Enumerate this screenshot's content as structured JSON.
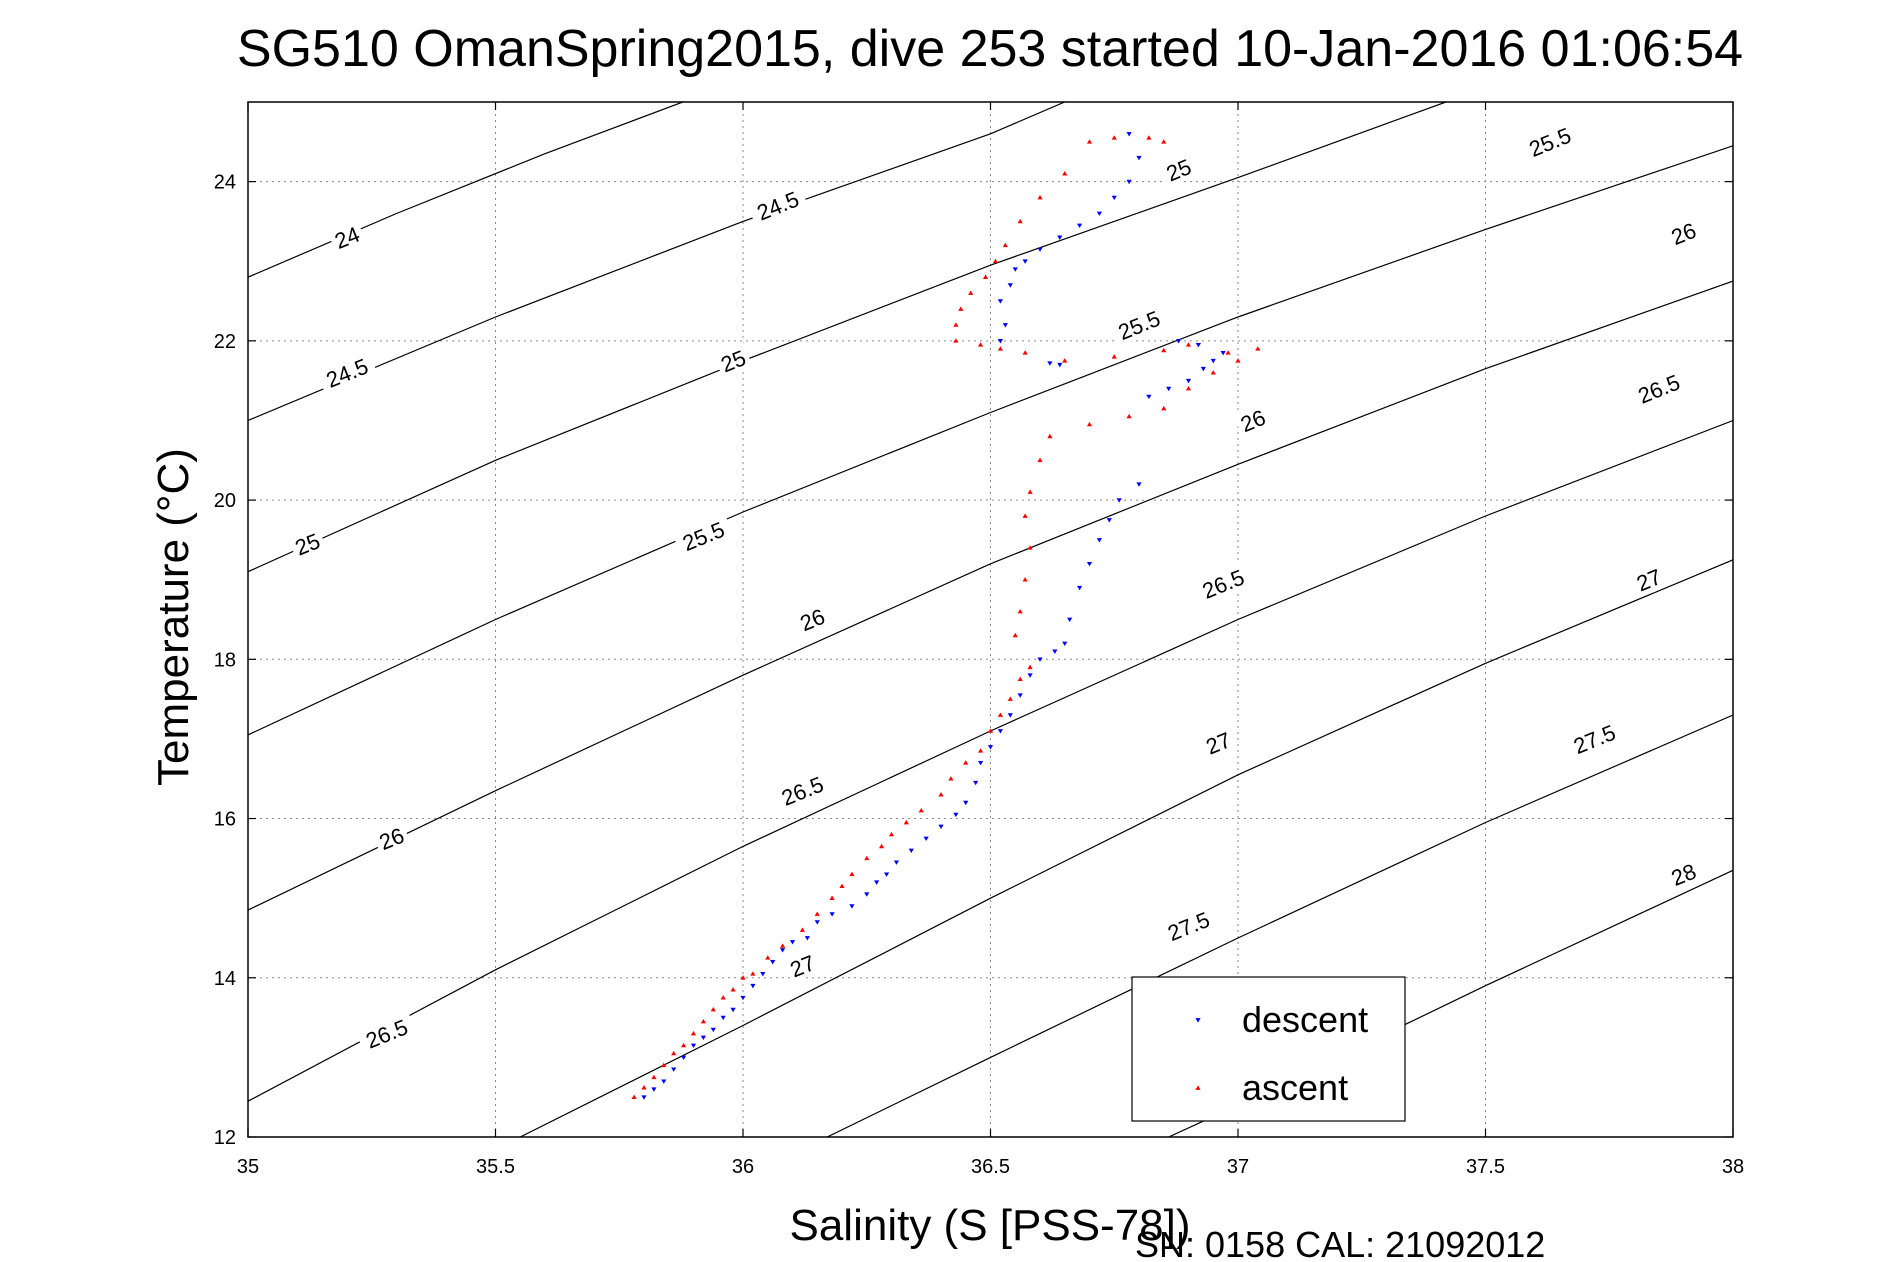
{
  "chart_data": {
    "type": "scatter",
    "title": "SG510 OmanSpring2015, dive 253 started 10-Jan-2016 01:06:54",
    "xlabel": "Salinity (S [PSS-78])",
    "ylabel": "Temperature (°C)",
    "xlim": [
      35,
      38
    ],
    "ylim": [
      12,
      25
    ],
    "xticks": [
      35,
      35.5,
      36,
      36.5,
      37,
      37.5,
      38
    ],
    "xtick_labels": [
      "35",
      "35.5",
      "36",
      "36.5",
      "37",
      "37.5",
      "38"
    ],
    "yticks": [
      12,
      14,
      16,
      18,
      20,
      22,
      24
    ],
    "ytick_labels": [
      "12",
      "14",
      "16",
      "18",
      "20",
      "22",
      "24"
    ],
    "grid": true,
    "legend_position": "bottom-right",
    "density_contours": {
      "color": "#000000",
      "lines": [
        {
          "label": "24",
          "points": [
            [
              35,
              22.8
            ],
            [
              35.3,
              23.6
            ],
            [
              35.6,
              24.35
            ],
            [
              35.9,
              25.05
            ]
          ]
        },
        {
          "label": "24.5",
          "points": [
            [
              35,
              21.0
            ],
            [
              35.5,
              22.3
            ],
            [
              36.0,
              23.5
            ],
            [
              36.5,
              24.6
            ],
            [
              36.65,
              25.0
            ]
          ]
        },
        {
          "label": "25",
          "points": [
            [
              35,
              19.1
            ],
            [
              35.5,
              20.5
            ],
            [
              36.0,
              21.75
            ],
            [
              36.5,
              22.95
            ],
            [
              37.0,
              24.05
            ],
            [
              37.42,
              25.0
            ]
          ]
        },
        {
          "label": "25.5",
          "points": [
            [
              35,
              17.05
            ],
            [
              35.5,
              18.5
            ],
            [
              36.0,
              19.85
            ],
            [
              36.5,
              21.1
            ],
            [
              37.0,
              22.3
            ],
            [
              37.5,
              23.4
            ],
            [
              38.0,
              24.45
            ]
          ]
        },
        {
          "label": "26",
          "points": [
            [
              35,
              14.85
            ],
            [
              35.5,
              16.35
            ],
            [
              36.0,
              17.8
            ],
            [
              36.5,
              19.2
            ],
            [
              37.0,
              20.45
            ],
            [
              37.5,
              21.65
            ],
            [
              38.0,
              22.75
            ]
          ]
        },
        {
          "label": "26.5",
          "points": [
            [
              35,
              12.45
            ],
            [
              35.5,
              14.1
            ],
            [
              36.0,
              15.65
            ],
            [
              36.5,
              17.1
            ],
            [
              37.0,
              18.5
            ],
            [
              37.5,
              19.8
            ],
            [
              38.0,
              21.0
            ]
          ]
        },
        {
          "label": "27",
          "points": [
            [
              35.55,
              12.0
            ],
            [
              36.0,
              13.4
            ],
            [
              36.5,
              15.0
            ],
            [
              37.0,
              16.55
            ],
            [
              37.5,
              17.95
            ],
            [
              38.0,
              19.25
            ]
          ]
        },
        {
          "label": "27.5",
          "points": [
            [
              36.17,
              12.0
            ],
            [
              36.5,
              13.0
            ],
            [
              37.0,
              14.5
            ],
            [
              37.5,
              15.95
            ],
            [
              38.0,
              17.3
            ]
          ]
        },
        {
          "label": "28",
          "points": [
            [
              36.86,
              12.0
            ],
            [
              37.0,
              12.4
            ],
            [
              37.5,
              13.9
            ],
            [
              38.0,
              15.35
            ]
          ]
        }
      ],
      "labels": [
        {
          "text": "24",
          "x": 35.2,
          "y": 23.3
        },
        {
          "text": "24.5",
          "x": 35.2,
          "y": 21.6
        },
        {
          "text": "25",
          "x": 35.12,
          "y": 19.45
        },
        {
          "text": "26",
          "x": 35.29,
          "y": 15.75
        },
        {
          "text": "26.5",
          "x": 35.28,
          "y": 13.3
        },
        {
          "text": "24.5",
          "x": 36.07,
          "y": 23.7
        },
        {
          "text": "25",
          "x": 35.98,
          "y": 21.75
        },
        {
          "text": "25.5",
          "x": 35.92,
          "y": 19.55
        },
        {
          "text": "26",
          "x": 36.14,
          "y": 18.5
        },
        {
          "text": "26.5",
          "x": 36.12,
          "y": 16.35
        },
        {
          "text": "27",
          "x": 36.12,
          "y": 14.15
        },
        {
          "text": "25",
          "x": 36.88,
          "y": 24.15
        },
        {
          "text": "25.5",
          "x": 36.8,
          "y": 22.2
        },
        {
          "text": "26",
          "x": 37.03,
          "y": 21.0
        },
        {
          "text": "26.5",
          "x": 36.97,
          "y": 18.95
        },
        {
          "text": "27",
          "x": 36.96,
          "y": 16.95
        },
        {
          "text": "27.5",
          "x": 36.9,
          "y": 14.65
        },
        {
          "text": "25.5",
          "x": 37.63,
          "y": 24.5
        },
        {
          "text": "26",
          "x": 37.9,
          "y": 23.35
        },
        {
          "text": "26.5",
          "x": 37.85,
          "y": 21.4
        },
        {
          "text": "27",
          "x": 37.83,
          "y": 19.0
        },
        {
          "text": "27.5",
          "x": 37.72,
          "y": 17.0
        },
        {
          "text": "28",
          "x": 37.9,
          "y": 15.3
        }
      ]
    },
    "series": [
      {
        "name": "descent",
        "color": "#0000ff",
        "marker": "triangle-down",
        "points": [
          [
            35.8,
            12.5
          ],
          [
            35.82,
            12.6
          ],
          [
            35.84,
            12.7
          ],
          [
            35.86,
            12.85
          ],
          [
            35.88,
            13.0
          ],
          [
            35.9,
            13.15
          ],
          [
            35.92,
            13.25
          ],
          [
            35.94,
            13.35
          ],
          [
            35.96,
            13.5
          ],
          [
            35.98,
            13.6
          ],
          [
            36.0,
            13.75
          ],
          [
            36.02,
            13.9
          ],
          [
            36.04,
            14.05
          ],
          [
            36.06,
            14.2
          ],
          [
            36.08,
            14.35
          ],
          [
            36.1,
            14.45
          ],
          [
            36.13,
            14.5
          ],
          [
            36.15,
            14.7
          ],
          [
            36.18,
            14.8
          ],
          [
            36.22,
            14.9
          ],
          [
            36.25,
            15.05
          ],
          [
            36.27,
            15.2
          ],
          [
            36.29,
            15.3
          ],
          [
            36.31,
            15.45
          ],
          [
            36.34,
            15.6
          ],
          [
            36.37,
            15.75
          ],
          [
            36.4,
            15.9
          ],
          [
            36.43,
            16.05
          ],
          [
            36.45,
            16.2
          ],
          [
            36.47,
            16.45
          ],
          [
            36.48,
            16.7
          ],
          [
            36.5,
            16.9
          ],
          [
            36.52,
            17.1
          ],
          [
            36.54,
            17.3
          ],
          [
            36.56,
            17.55
          ],
          [
            36.58,
            17.8
          ],
          [
            36.6,
            18.0
          ],
          [
            36.63,
            18.1
          ],
          [
            36.65,
            18.2
          ],
          [
            36.66,
            18.5
          ],
          [
            36.68,
            18.9
          ],
          [
            36.7,
            19.2
          ],
          [
            36.72,
            19.5
          ],
          [
            36.74,
            19.75
          ],
          [
            36.76,
            20.0
          ],
          [
            36.8,
            20.2
          ],
          [
            36.82,
            21.3
          ],
          [
            36.86,
            21.4
          ],
          [
            36.9,
            21.5
          ],
          [
            36.93,
            21.65
          ],
          [
            36.95,
            21.75
          ],
          [
            36.97,
            21.85
          ],
          [
            36.92,
            21.95
          ],
          [
            36.88,
            22.0
          ],
          [
            36.62,
            21.72
          ],
          [
            36.64,
            21.7
          ],
          [
            36.52,
            22.0
          ],
          [
            36.53,
            22.2
          ],
          [
            36.52,
            22.5
          ],
          [
            36.54,
            22.7
          ],
          [
            36.55,
            22.9
          ],
          [
            36.57,
            23.0
          ],
          [
            36.6,
            23.15
          ],
          [
            36.64,
            23.3
          ],
          [
            36.68,
            23.45
          ],
          [
            36.72,
            23.6
          ],
          [
            36.75,
            23.8
          ],
          [
            36.78,
            24.0
          ],
          [
            36.8,
            24.3
          ],
          [
            36.78,
            24.6
          ]
        ]
      },
      {
        "name": "ascent",
        "color": "#ff0000",
        "marker": "triangle-up",
        "points": [
          [
            35.78,
            12.5
          ],
          [
            35.8,
            12.62
          ],
          [
            35.82,
            12.75
          ],
          [
            35.84,
            12.9
          ],
          [
            35.86,
            13.05
          ],
          [
            35.88,
            13.15
          ],
          [
            35.9,
            13.3
          ],
          [
            35.92,
            13.45
          ],
          [
            35.94,
            13.6
          ],
          [
            35.96,
            13.75
          ],
          [
            35.98,
            13.85
          ],
          [
            36.0,
            14.0
          ],
          [
            36.02,
            14.05
          ],
          [
            36.05,
            14.25
          ],
          [
            36.08,
            14.4
          ],
          [
            36.12,
            14.6
          ],
          [
            36.15,
            14.8
          ],
          [
            36.18,
            15.0
          ],
          [
            36.2,
            15.15
          ],
          [
            36.22,
            15.3
          ],
          [
            36.25,
            15.5
          ],
          [
            36.28,
            15.65
          ],
          [
            36.3,
            15.8
          ],
          [
            36.33,
            15.95
          ],
          [
            36.36,
            16.1
          ],
          [
            36.4,
            16.3
          ],
          [
            36.42,
            16.5
          ],
          [
            36.45,
            16.7
          ],
          [
            36.48,
            16.85
          ],
          [
            36.5,
            17.1
          ],
          [
            36.52,
            17.3
          ],
          [
            36.54,
            17.5
          ],
          [
            36.56,
            17.75
          ],
          [
            36.58,
            17.9
          ],
          [
            36.55,
            18.3
          ],
          [
            36.56,
            18.6
          ],
          [
            36.57,
            19.0
          ],
          [
            36.58,
            19.4
          ],
          [
            36.57,
            19.8
          ],
          [
            36.58,
            20.1
          ],
          [
            36.6,
            20.5
          ],
          [
            36.62,
            20.8
          ],
          [
            36.7,
            20.95
          ],
          [
            36.78,
            21.05
          ],
          [
            36.85,
            21.15
          ],
          [
            36.9,
            21.4
          ],
          [
            36.95,
            21.6
          ],
          [
            37.0,
            21.75
          ],
          [
            37.04,
            21.9
          ],
          [
            36.98,
            21.85
          ],
          [
            36.9,
            21.95
          ],
          [
            36.85,
            21.88
          ],
          [
            36.75,
            21.8
          ],
          [
            36.65,
            21.75
          ],
          [
            36.57,
            21.85
          ],
          [
            36.52,
            21.9
          ],
          [
            36.48,
            21.95
          ],
          [
            36.43,
            22.0
          ],
          [
            36.43,
            22.2
          ],
          [
            36.44,
            22.4
          ],
          [
            36.46,
            22.6
          ],
          [
            36.49,
            22.8
          ],
          [
            36.51,
            23.0
          ],
          [
            36.53,
            23.2
          ],
          [
            36.56,
            23.5
          ],
          [
            36.6,
            23.8
          ],
          [
            36.65,
            24.1
          ],
          [
            36.7,
            24.5
          ],
          [
            36.75,
            24.55
          ],
          [
            36.82,
            24.55
          ],
          [
            36.85,
            24.5
          ]
        ]
      }
    ],
    "footer": "SN: 0158  CAL: 21092012"
  }
}
